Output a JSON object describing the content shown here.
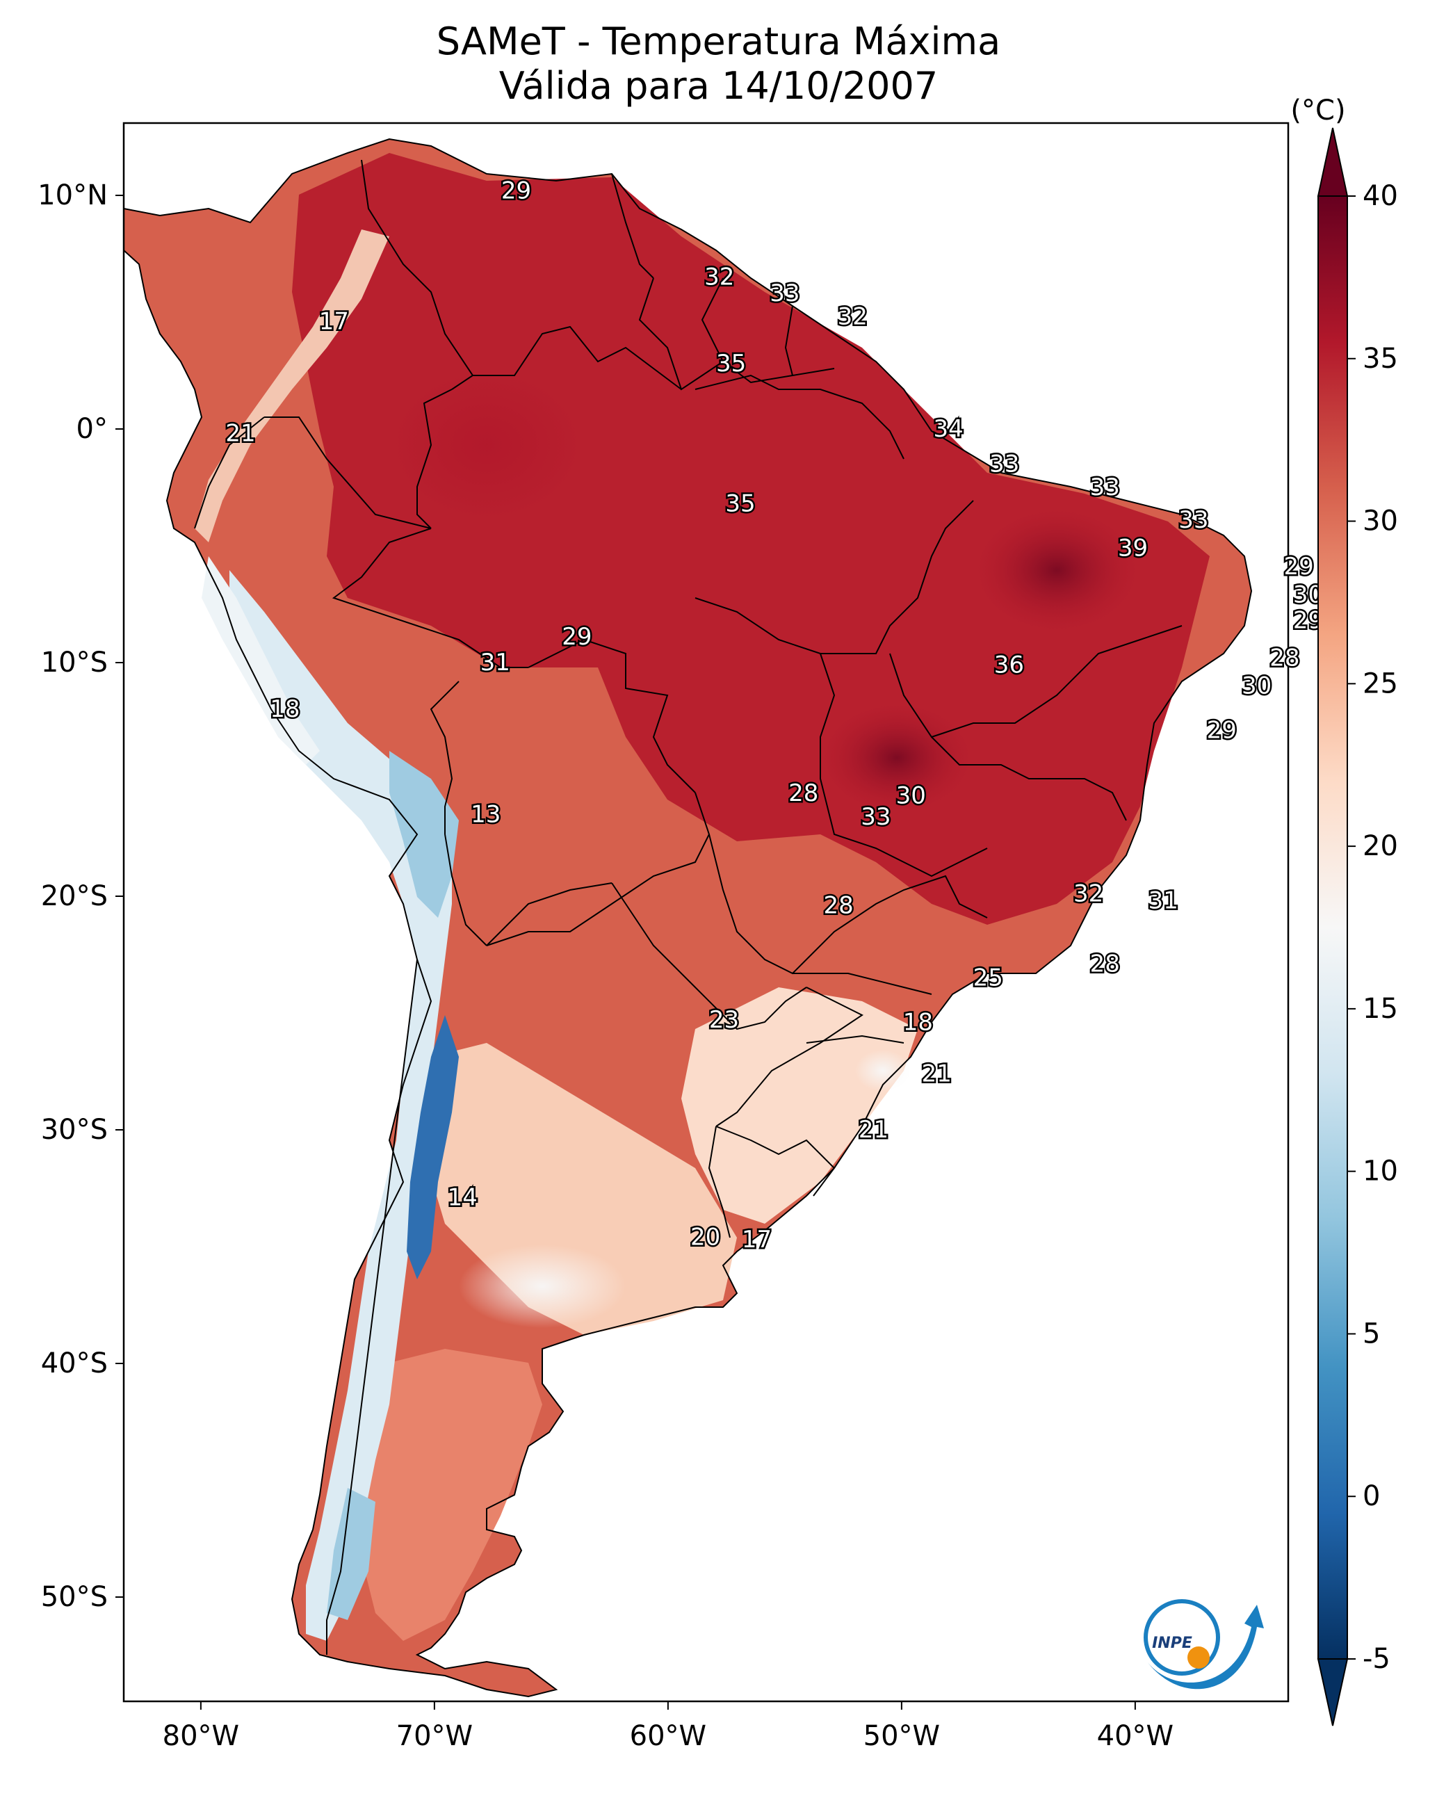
{
  "title_line1": "SAMeT - Temperatura Máxima",
  "title_line2": "Válida para 14/10/2007",
  "colorbar": {
    "unit": "(°C)",
    "ticks": [
      "40",
      "35",
      "30",
      "25",
      "20",
      "15",
      "10",
      "5",
      "0",
      "-5"
    ],
    "min": -5,
    "max": 40,
    "colors": [
      "#053061",
      "#2166ac",
      "#4393c3",
      "#92c5de",
      "#d1e5f0",
      "#f7f7f7",
      "#fddbc7",
      "#f4a582",
      "#d6604d",
      "#b2182b",
      "#67001f"
    ]
  },
  "axes": {
    "lon_labels": [
      "80°W",
      "70°W",
      "60°W",
      "50°W",
      "40°W"
    ],
    "lat_labels": [
      "10°N",
      "0°",
      "10°S",
      "20°S",
      "30°S",
      "40°S",
      "50°S"
    ]
  },
  "logo": {
    "text": "INPE"
  },
  "station_values": [
    {
      "label": "29",
      "lon": -66.5,
      "lat": 10.2
    },
    {
      "label": "17",
      "lon": -74.3,
      "lat": 4.6
    },
    {
      "label": "32",
      "lon": -57.8,
      "lat": 6.5
    },
    {
      "label": "33",
      "lon": -55.0,
      "lat": 5.8
    },
    {
      "label": "32",
      "lon": -52.1,
      "lat": 4.8
    },
    {
      "label": "35",
      "lon": -57.3,
      "lat": 2.8
    },
    {
      "label": "21",
      "lon": -78.3,
      "lat": -0.2
    },
    {
      "label": "34",
      "lon": -48.0,
      "lat": 0.0
    },
    {
      "label": "33",
      "lon": -45.6,
      "lat": -1.5
    },
    {
      "label": "35",
      "lon": -56.9,
      "lat": -3.2
    },
    {
      "label": "33",
      "lon": -41.3,
      "lat": -2.5
    },
    {
      "label": "33",
      "lon": -37.5,
      "lat": -3.9
    },
    {
      "label": "39",
      "lon": -40.1,
      "lat": -5.1
    },
    {
      "label": "29",
      "lon": -33.0,
      "lat": -5.9
    },
    {
      "label": "30",
      "lon": -32.6,
      "lat": -7.1
    },
    {
      "label": "29",
      "lon": -32.6,
      "lat": -8.2
    },
    {
      "label": "29",
      "lon": -63.9,
      "lat": -8.9
    },
    {
      "label": "28",
      "lon": -33.6,
      "lat": -9.8
    },
    {
      "label": "31",
      "lon": -67.4,
      "lat": -10.0
    },
    {
      "label": "36",
      "lon": -45.4,
      "lat": -10.1
    },
    {
      "label": "30",
      "lon": -34.8,
      "lat": -11.0
    },
    {
      "label": "18",
      "lon": -76.4,
      "lat": -12.0
    },
    {
      "label": "29",
      "lon": -36.3,
      "lat": -12.9
    },
    {
      "label": "13",
      "lon": -67.8,
      "lat": -16.5
    },
    {
      "label": "28",
      "lon": -54.2,
      "lat": -15.6
    },
    {
      "label": "30",
      "lon": -49.6,
      "lat": -15.7
    },
    {
      "label": "33",
      "lon": -51.1,
      "lat": -16.6
    },
    {
      "label": "32",
      "lon": -42.0,
      "lat": -19.9
    },
    {
      "label": "31",
      "lon": -38.8,
      "lat": -20.2
    },
    {
      "label": "28",
      "lon": -52.7,
      "lat": -20.4
    },
    {
      "label": "28",
      "lon": -41.3,
      "lat": -22.9
    },
    {
      "label": "25",
      "lon": -46.3,
      "lat": -23.5
    },
    {
      "label": "23",
      "lon": -57.6,
      "lat": -25.3
    },
    {
      "label": "18",
      "lon": -49.3,
      "lat": -25.4
    },
    {
      "label": "21",
      "lon": -48.5,
      "lat": -27.6
    },
    {
      "label": "21",
      "lon": -51.2,
      "lat": -30.0
    },
    {
      "label": "14",
      "lon": -68.8,
      "lat": -32.9
    },
    {
      "label": "20",
      "lon": -58.4,
      "lat": -34.6
    },
    {
      "label": "17",
      "lon": -56.2,
      "lat": -34.7
    }
  ]
}
